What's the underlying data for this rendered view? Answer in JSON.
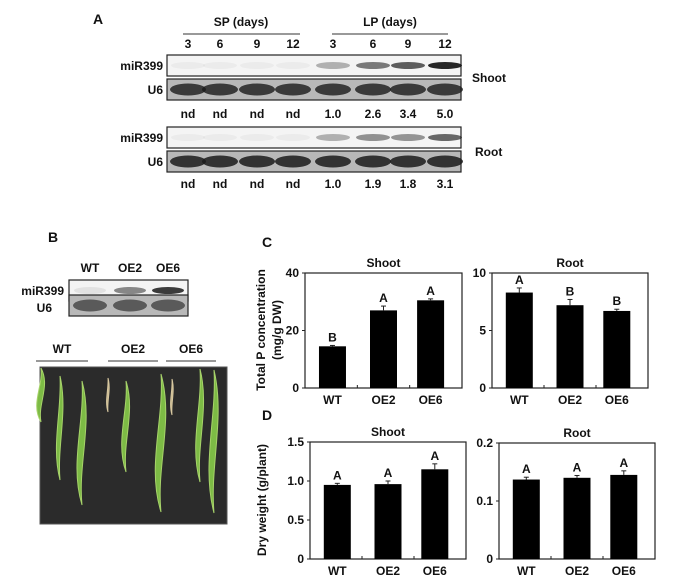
{
  "panel_a": {
    "label": "A",
    "sp_header": "SP (days)",
    "lp_header": "LP (days)",
    "days": [
      "3",
      "6",
      "9",
      "12",
      "3",
      "6",
      "9",
      "12"
    ],
    "row_mir": "miR399",
    "row_u6": "U6",
    "shoot_label": "Shoot",
    "root_label": "Root",
    "shoot_values": [
      "nd",
      "nd",
      "nd",
      "nd",
      "1.0",
      "2.6",
      "3.4",
      "5.0"
    ],
    "root_values": [
      "nd",
      "nd",
      "nd",
      "nd",
      "1.0",
      "1.9",
      "1.8",
      "3.1"
    ]
  },
  "panel_b": {
    "label": "B",
    "lanes": [
      "WT",
      "OE2",
      "OE6"
    ],
    "row_mir": "miR399",
    "row_u6": "U6",
    "photo_groups": [
      "WT",
      "OE2",
      "OE6"
    ]
  },
  "colors": {
    "bar": "#000000",
    "leaf": "#7dbb45",
    "photo_bg": "#2b2b2b"
  },
  "chart_data": [
    {
      "panel": "C",
      "type": "bar",
      "title": "Shoot",
      "ylabel": "Total P concentration (mg/g DW)",
      "categories": [
        "WT",
        "OE2",
        "OE6"
      ],
      "values": [
        14.5,
        27.0,
        30.5
      ],
      "errors": [
        0.3,
        1.5,
        0.5
      ],
      "letters": [
        "B",
        "A",
        "A"
      ],
      "ylim": [
        0,
        40
      ],
      "yticks": [
        "0",
        "20",
        "40"
      ],
      "ytick_values": [
        0,
        20,
        40
      ]
    },
    {
      "panel": "C",
      "type": "bar",
      "title": "Root",
      "categories": [
        "WT",
        "OE2",
        "OE6"
      ],
      "values": [
        8.3,
        7.2,
        6.7
      ],
      "errors": [
        0.4,
        0.5,
        0.15
      ],
      "letters": [
        "A",
        "B",
        "B"
      ],
      "ylim": [
        0,
        10
      ],
      "yticks": [
        "0",
        "5",
        "10"
      ],
      "ytick_values": [
        0,
        5,
        10
      ]
    },
    {
      "panel": "D",
      "type": "bar",
      "title": "Shoot",
      "ylabel": "Dry weight (g/plant)",
      "categories": [
        "WT",
        "OE2",
        "OE6"
      ],
      "values": [
        0.95,
        0.96,
        1.15
      ],
      "errors": [
        0.02,
        0.04,
        0.07
      ],
      "letters": [
        "A",
        "A",
        "A"
      ],
      "ylim": [
        0,
        1.5
      ],
      "yticks": [
        "0",
        "0.5",
        "1.0",
        "1.5"
      ],
      "ytick_values": [
        0,
        0.5,
        1.0,
        1.5
      ]
    },
    {
      "panel": "D",
      "type": "bar",
      "title": "Root",
      "categories": [
        "WT",
        "OE2",
        "OE6"
      ],
      "values": [
        0.137,
        0.14,
        0.145
      ],
      "errors": [
        0.004,
        0.004,
        0.007
      ],
      "letters": [
        "A",
        "A",
        "A"
      ],
      "ylim": [
        0,
        0.2
      ],
      "yticks": [
        "0",
        "0.1",
        "0.2"
      ],
      "ytick_values": [
        0,
        0.1,
        0.2
      ]
    }
  ],
  "panel_c_label": "C",
  "panel_d_label": "D",
  "c_ylabel_line1": "Total P concentration",
  "c_ylabel_line2": "(mg/g DW)",
  "d_ylabel": "Dry weight (g/plant)"
}
